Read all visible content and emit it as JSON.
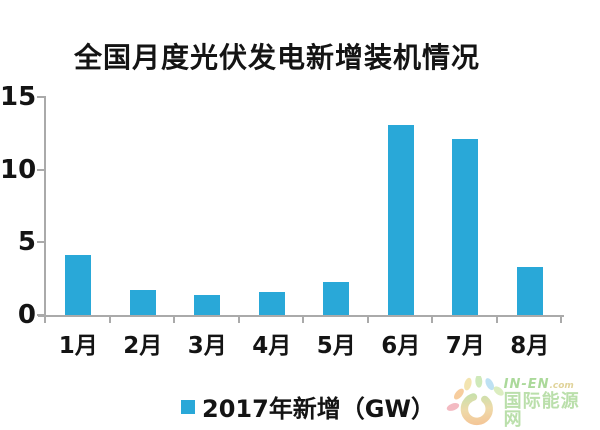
{
  "title": "全国月度光伏发电新增装机情况",
  "chart_data": {
    "type": "bar",
    "title": "全国月度光伏发电新增装机情况",
    "categories": [
      "1月",
      "2月",
      "3月",
      "4月",
      "5月",
      "6月",
      "7月",
      "8月"
    ],
    "values": [
      4.1,
      1.7,
      1.4,
      1.6,
      2.3,
      13.1,
      12.1,
      3.3
    ],
    "series_name": "2017年新增（GW）",
    "xlabel": "",
    "ylabel": "",
    "ylim": [
      0,
      15
    ],
    "yticks": [
      0,
      5,
      10,
      15
    ],
    "grid": false,
    "legend_position": "bottom",
    "bar_color": "#29a8d8",
    "axis_color": "#aaaaaa",
    "text_color": "#141414"
  },
  "legend": {
    "label": "2017年新增（GW）",
    "swatch_color": "#29a8d8"
  },
  "watermark": {
    "name_en": "IN-EN",
    "domain": ".com",
    "name_cn": "国际能源网"
  }
}
